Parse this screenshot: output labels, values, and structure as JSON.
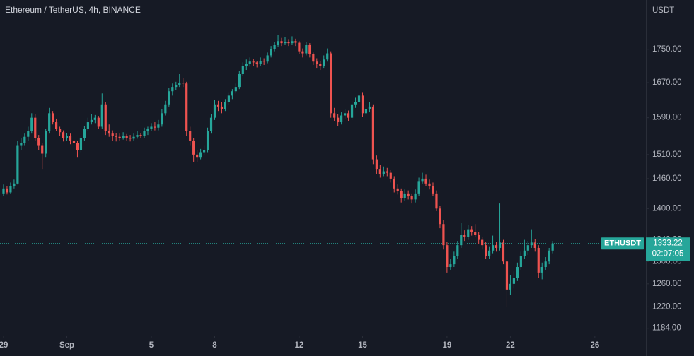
{
  "chart_data": {
    "type": "candlestick",
    "title": "Ethereum / TetherUS, 4h, BINANCE",
    "y_axis_label": "USDT",
    "symbol": "ETHUSDT",
    "countdown": "02:07:05",
    "log_scale": true,
    "grid": false,
    "up_color": "#26a69a",
    "down_color": "#ef5350",
    "ylim": [
      1172,
      1875
    ],
    "yticks": [
      {
        "value": 1184,
        "label": "1184.00"
      },
      {
        "value": 1220,
        "label": "1220.00"
      },
      {
        "value": 1260,
        "label": "1260.00"
      },
      {
        "value": 1300,
        "label": "1300.00"
      },
      {
        "value": 1340,
        "label": "1340.00"
      },
      {
        "value": 1400,
        "label": "1400.00"
      },
      {
        "value": 1460,
        "label": "1460.00"
      },
      {
        "value": 1510,
        "label": "1510.00"
      },
      {
        "value": 1590,
        "label": "1590.00"
      },
      {
        "value": 1670,
        "label": "1670.00"
      },
      {
        "value": 1750,
        "label": "1750.00"
      }
    ],
    "xlim": [
      -1,
      182.5
    ],
    "xticks": [
      {
        "value": 0,
        "label": "29"
      },
      {
        "value": 18,
        "label": "Sep"
      },
      {
        "value": 42,
        "label": "5"
      },
      {
        "value": 60,
        "label": "8"
      },
      {
        "value": 84,
        "label": "12"
      },
      {
        "value": 102,
        "label": "15"
      },
      {
        "value": 126,
        "label": "19"
      },
      {
        "value": 144,
        "label": "22"
      },
      {
        "value": 168,
        "label": "26"
      }
    ],
    "candles": [
      [
        1430,
        1448,
        1425,
        1440
      ],
      [
        1440,
        1445,
        1428,
        1432
      ],
      [
        1432,
        1452,
        1430,
        1445
      ],
      [
        1445,
        1458,
        1440,
        1450
      ],
      [
        1450,
        1540,
        1448,
        1530
      ],
      [
        1530,
        1545,
        1520,
        1535
      ],
      [
        1535,
        1555,
        1530,
        1548
      ],
      [
        1548,
        1570,
        1540,
        1560
      ],
      [
        1560,
        1600,
        1555,
        1590
      ],
      [
        1590,
        1598,
        1540,
        1545
      ],
      [
        1545,
        1552,
        1520,
        1530
      ],
      [
        1530,
        1535,
        1480,
        1512
      ],
      [
        1512,
        1565,
        1505,
        1560
      ],
      [
        1560,
        1612,
        1555,
        1600
      ],
      [
        1600,
        1605,
        1575,
        1580
      ],
      [
        1580,
        1588,
        1560,
        1565
      ],
      [
        1565,
        1570,
        1550,
        1558
      ],
      [
        1558,
        1562,
        1538,
        1545
      ],
      [
        1545,
        1556,
        1540,
        1550
      ],
      [
        1550,
        1555,
        1532,
        1540
      ],
      [
        1540,
        1545,
        1528,
        1535
      ],
      [
        1535,
        1540,
        1505,
        1520
      ],
      [
        1520,
        1550,
        1515,
        1545
      ],
      [
        1545,
        1572,
        1540,
        1565
      ],
      [
        1565,
        1590,
        1560,
        1580
      ],
      [
        1580,
        1598,
        1575,
        1585
      ],
      [
        1585,
        1596,
        1578,
        1590
      ],
      [
        1590,
        1594,
        1565,
        1570
      ],
      [
        1570,
        1645,
        1565,
        1620
      ],
      [
        1620,
        1625,
        1552,
        1560
      ],
      [
        1560,
        1575,
        1548,
        1555
      ],
      [
        1555,
        1562,
        1540,
        1550
      ],
      [
        1550,
        1556,
        1538,
        1548
      ],
      [
        1548,
        1555,
        1540,
        1545
      ],
      [
        1545,
        1558,
        1542,
        1550
      ],
      [
        1550,
        1554,
        1540,
        1546
      ],
      [
        1546,
        1552,
        1538,
        1544
      ],
      [
        1544,
        1555,
        1540,
        1548
      ],
      [
        1548,
        1560,
        1544,
        1552
      ],
      [
        1552,
        1556,
        1545,
        1550
      ],
      [
        1550,
        1568,
        1546,
        1560
      ],
      [
        1560,
        1570,
        1552,
        1565
      ],
      [
        1565,
        1578,
        1560,
        1570
      ],
      [
        1570,
        1580,
        1562,
        1568
      ],
      [
        1568,
        1585,
        1562,
        1575
      ],
      [
        1575,
        1610,
        1570,
        1600
      ],
      [
        1600,
        1628,
        1595,
        1620
      ],
      [
        1620,
        1658,
        1615,
        1650
      ],
      [
        1650,
        1668,
        1640,
        1660
      ],
      [
        1660,
        1672,
        1652,
        1665
      ],
      [
        1665,
        1690,
        1660,
        1670
      ],
      [
        1670,
        1680,
        1660,
        1668
      ],
      [
        1668,
        1672,
        1550,
        1560
      ],
      [
        1560,
        1570,
        1530,
        1540
      ],
      [
        1540,
        1545,
        1495,
        1510
      ],
      [
        1510,
        1520,
        1495,
        1505
      ],
      [
        1505,
        1522,
        1500,
        1515
      ],
      [
        1515,
        1530,
        1508,
        1520
      ],
      [
        1520,
        1568,
        1515,
        1560
      ],
      [
        1560,
        1598,
        1555,
        1590
      ],
      [
        1590,
        1630,
        1585,
        1620
      ],
      [
        1620,
        1628,
        1605,
        1615
      ],
      [
        1615,
        1625,
        1600,
        1610
      ],
      [
        1610,
        1632,
        1605,
        1625
      ],
      [
        1625,
        1648,
        1618,
        1640
      ],
      [
        1640,
        1655,
        1632,
        1650
      ],
      [
        1650,
        1668,
        1645,
        1660
      ],
      [
        1660,
        1698,
        1655,
        1690
      ],
      [
        1690,
        1718,
        1685,
        1710
      ],
      [
        1710,
        1725,
        1700,
        1715
      ],
      [
        1715,
        1730,
        1708,
        1720
      ],
      [
        1720,
        1726,
        1710,
        1718
      ],
      [
        1718,
        1722,
        1706,
        1715
      ],
      [
        1715,
        1730,
        1710,
        1722
      ],
      [
        1722,
        1728,
        1712,
        1720
      ],
      [
        1720,
        1742,
        1716,
        1735
      ],
      [
        1735,
        1758,
        1730,
        1750
      ],
      [
        1750,
        1768,
        1745,
        1760
      ],
      [
        1760,
        1785,
        1755,
        1770
      ],
      [
        1770,
        1778,
        1758,
        1765
      ],
      [
        1765,
        1780,
        1760,
        1768
      ],
      [
        1768,
        1775,
        1758,
        1765
      ],
      [
        1765,
        1782,
        1760,
        1770
      ],
      [
        1770,
        1776,
        1758,
        1766
      ],
      [
        1766,
        1770,
        1738,
        1745
      ],
      [
        1745,
        1752,
        1730,
        1740
      ],
      [
        1740,
        1768,
        1735,
        1760
      ],
      [
        1760,
        1765,
        1730,
        1738
      ],
      [
        1738,
        1742,
        1712,
        1720
      ],
      [
        1720,
        1728,
        1705,
        1715
      ],
      [
        1715,
        1722,
        1700,
        1710
      ],
      [
        1710,
        1735,
        1705,
        1725
      ],
      [
        1725,
        1752,
        1720,
        1740
      ],
      [
        1740,
        1745,
        1590,
        1600
      ],
      [
        1600,
        1612,
        1582,
        1590
      ],
      [
        1590,
        1598,
        1572,
        1580
      ],
      [
        1580,
        1602,
        1575,
        1595
      ],
      [
        1595,
        1610,
        1588,
        1600
      ],
      [
        1600,
        1606,
        1582,
        1590
      ],
      [
        1590,
        1628,
        1585,
        1620
      ],
      [
        1620,
        1635,
        1612,
        1625
      ],
      [
        1625,
        1655,
        1618,
        1640
      ],
      [
        1640,
        1648,
        1592,
        1600
      ],
      [
        1600,
        1618,
        1595,
        1610
      ],
      [
        1610,
        1625,
        1602,
        1615
      ],
      [
        1615,
        1620,
        1490,
        1500
      ],
      [
        1500,
        1508,
        1470,
        1480
      ],
      [
        1480,
        1488,
        1462,
        1470
      ],
      [
        1470,
        1485,
        1465,
        1475
      ],
      [
        1475,
        1482,
        1465,
        1472
      ],
      [
        1472,
        1478,
        1452,
        1460
      ],
      [
        1460,
        1465,
        1432,
        1440
      ],
      [
        1440,
        1448,
        1428,
        1435
      ],
      [
        1435,
        1440,
        1412,
        1420
      ],
      [
        1420,
        1438,
        1415,
        1430
      ],
      [
        1430,
        1436,
        1418,
        1425
      ],
      [
        1425,
        1430,
        1410,
        1418
      ],
      [
        1418,
        1438,
        1412,
        1430
      ],
      [
        1430,
        1462,
        1425,
        1455
      ],
      [
        1455,
        1472,
        1450,
        1460
      ],
      [
        1460,
        1468,
        1445,
        1450
      ],
      [
        1450,
        1458,
        1438,
        1445
      ],
      [
        1445,
        1452,
        1425,
        1430
      ],
      [
        1430,
        1436,
        1395,
        1400
      ],
      [
        1400,
        1405,
        1362,
        1370
      ],
      [
        1370,
        1378,
        1322,
        1330
      ],
      [
        1330,
        1336,
        1280,
        1290
      ],
      [
        1290,
        1305,
        1285,
        1295
      ],
      [
        1295,
        1318,
        1290,
        1310
      ],
      [
        1310,
        1338,
        1305,
        1330
      ],
      [
        1330,
        1372,
        1325,
        1350
      ],
      [
        1350,
        1358,
        1338,
        1345
      ],
      [
        1345,
        1368,
        1340,
        1360
      ],
      [
        1360,
        1366,
        1348,
        1355
      ],
      [
        1355,
        1370,
        1345,
        1350
      ],
      [
        1350,
        1355,
        1332,
        1340
      ],
      [
        1340,
        1345,
        1322,
        1330
      ],
      [
        1330,
        1336,
        1305,
        1310
      ],
      [
        1310,
        1328,
        1305,
        1320
      ],
      [
        1320,
        1348,
        1315,
        1330
      ],
      [
        1330,
        1336,
        1318,
        1325
      ],
      [
        1325,
        1410,
        1320,
        1335
      ],
      [
        1335,
        1340,
        1295,
        1300
      ],
      [
        1300,
        1305,
        1220,
        1250
      ],
      [
        1250,
        1275,
        1240,
        1260
      ],
      [
        1260,
        1282,
        1252,
        1270
      ],
      [
        1270,
        1298,
        1265,
        1290
      ],
      [
        1290,
        1318,
        1285,
        1310
      ],
      [
        1310,
        1340,
        1305,
        1320
      ],
      [
        1320,
        1338,
        1312,
        1330
      ],
      [
        1330,
        1360,
        1325,
        1335
      ],
      [
        1335,
        1342,
        1318,
        1325
      ],
      [
        1325,
        1330,
        1270,
        1280
      ],
      [
        1280,
        1298,
        1268,
        1290
      ],
      [
        1290,
        1308,
        1285,
        1300
      ],
      [
        1300,
        1325,
        1295,
        1320
      ],
      [
        1320,
        1338,
        1315,
        1333.22
      ]
    ]
  }
}
